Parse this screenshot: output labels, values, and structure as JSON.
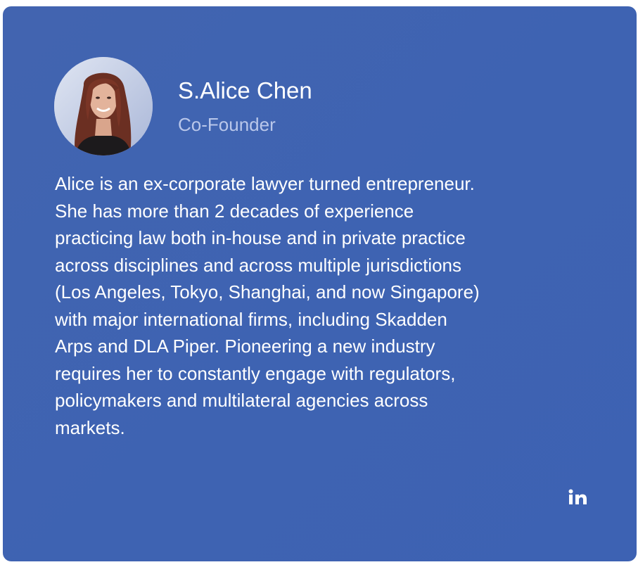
{
  "profile": {
    "name": "S.Alice Chen",
    "role": "Co-Founder",
    "bio": "Alice is an ex-corporate lawyer turned entrepreneur. She has more than 2 decades of experience practicing law both in-house and in private practice across disciplines and across multiple jurisdictions (Los Angeles, Tokyo, Shanghai, and now Singapore) with major international firms, including Skadden Arps and DLA Piper. Pioneering a new industry requires her to constantly engage with regulators, policymakers and multilateral agencies across markets."
  },
  "social": {
    "icon": "linkedin-icon"
  },
  "colors": {
    "card_background": "#3f63b2",
    "role_text": "#b9c7ea",
    "text": "#ffffff"
  }
}
